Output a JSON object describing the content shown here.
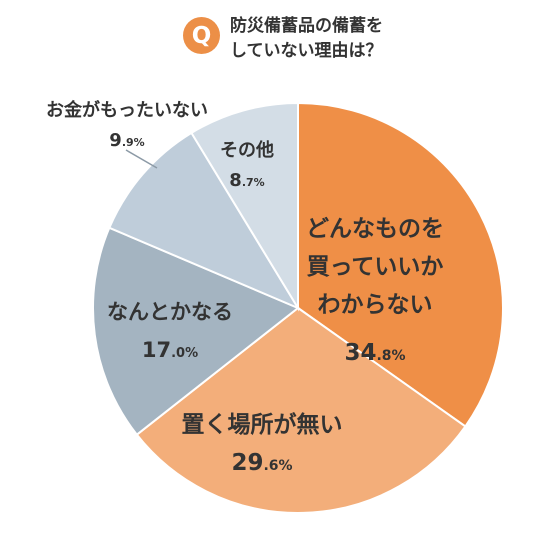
{
  "question": {
    "badge": "Q",
    "line1": "防災備蓄品の備蓄を",
    "line2": "していない理由は？"
  },
  "colors": {
    "accent": "#ec8f47",
    "slice_orange": "#ef8f47",
    "slice_peach": "#f3ae7a",
    "slice_slate": "#a4b4c1",
    "slice_light_blue": "#bfcdda",
    "slice_pale": "#d3dde6"
  },
  "chart_data": {
    "type": "pie",
    "unit": "%",
    "slices": [
      {
        "label_lines": [
          "どんなものを",
          "買っていいか",
          "わからない"
        ],
        "value": 34.8,
        "color": "#ef8f47"
      },
      {
        "label_lines": [
          "置く場所が無い"
        ],
        "value": 29.6,
        "color": "#f3ae7a"
      },
      {
        "label_lines": [
          "なんとかなる"
        ],
        "value": 17.0,
        "color": "#a4b4c1"
      },
      {
        "label_lines": [
          "お金がもったいない"
        ],
        "value": 9.9,
        "color": "#bfcdda"
      },
      {
        "label_lines": [
          "その他"
        ],
        "value": 8.7,
        "color": "#d3dde6"
      }
    ]
  }
}
